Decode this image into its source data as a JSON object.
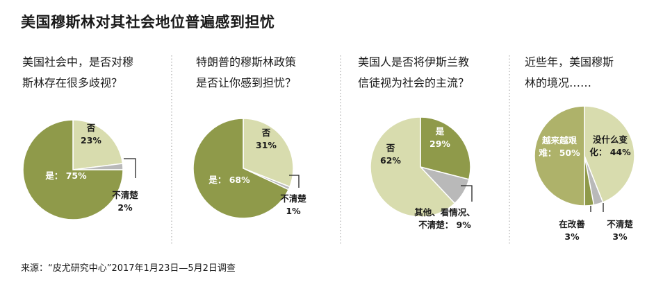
{
  "title": "美国穆斯林对其社会地位普遍感到担忧",
  "source": "来源：“皮尤研究中心”2017年1月23日—5月2日调查",
  "colors": {
    "olive": "#8f9a4a",
    "light": "#d8dcae",
    "gray": "#b9b9b9",
    "divider": "#999999"
  },
  "chart_data": [
    {
      "type": "pie",
      "title": [
        "美国社会中，是否对穆",
        "斯林存在很多歧视？"
      ],
      "slices": [
        {
          "label": "否",
          "value": 23,
          "value_text": "23%",
          "color": "light"
        },
        {
          "label": "不清楚",
          "value": 2,
          "value_text": "2%",
          "color": "gray"
        },
        {
          "label": "是：",
          "value": 75,
          "value_text": "75%",
          "color": "olive"
        }
      ]
    },
    {
      "type": "pie",
      "title": [
        "特朗普的穆斯林政策",
        "是否让你感到担忧？"
      ],
      "slices": [
        {
          "label": "否",
          "value": 31,
          "value_text": "31%",
          "color": "light"
        },
        {
          "label": "不清楚",
          "value": 1,
          "value_text": "1%",
          "color": "gray"
        },
        {
          "label": "是：",
          "value": 68,
          "value_text": "68%",
          "color": "olive"
        }
      ]
    },
    {
      "type": "pie",
      "title": [
        "美国人是否将伊斯兰教",
        "信徒视为社会的主流？"
      ],
      "slices": [
        {
          "label": "是",
          "value": 29,
          "value_text": "29%",
          "color": "olive"
        },
        {
          "label": [
            "其他、看情况、",
            "不清楚："
          ],
          "value": 9,
          "value_text": "9%",
          "color": "gray"
        },
        {
          "label": "否",
          "value": 62,
          "value_text": "62%",
          "color": "light"
        }
      ]
    },
    {
      "type": "pie",
      "title": [
        "近些年，美国穆斯",
        "林的境况……"
      ],
      "slices": [
        {
          "label": [
            "没什么变",
            "化："
          ],
          "value": 44,
          "value_text": "44%",
          "color": "light"
        },
        {
          "label": "不清楚",
          "value": 3,
          "value_text": "3%",
          "color": "gray"
        },
        {
          "label": "在改善",
          "value": 3,
          "value_text": "3%",
          "color": "olive"
        },
        {
          "label": [
            "越来越艰",
            "难："
          ],
          "value": 50,
          "value_text": "50%",
          "color": "light"
        }
      ]
    }
  ]
}
